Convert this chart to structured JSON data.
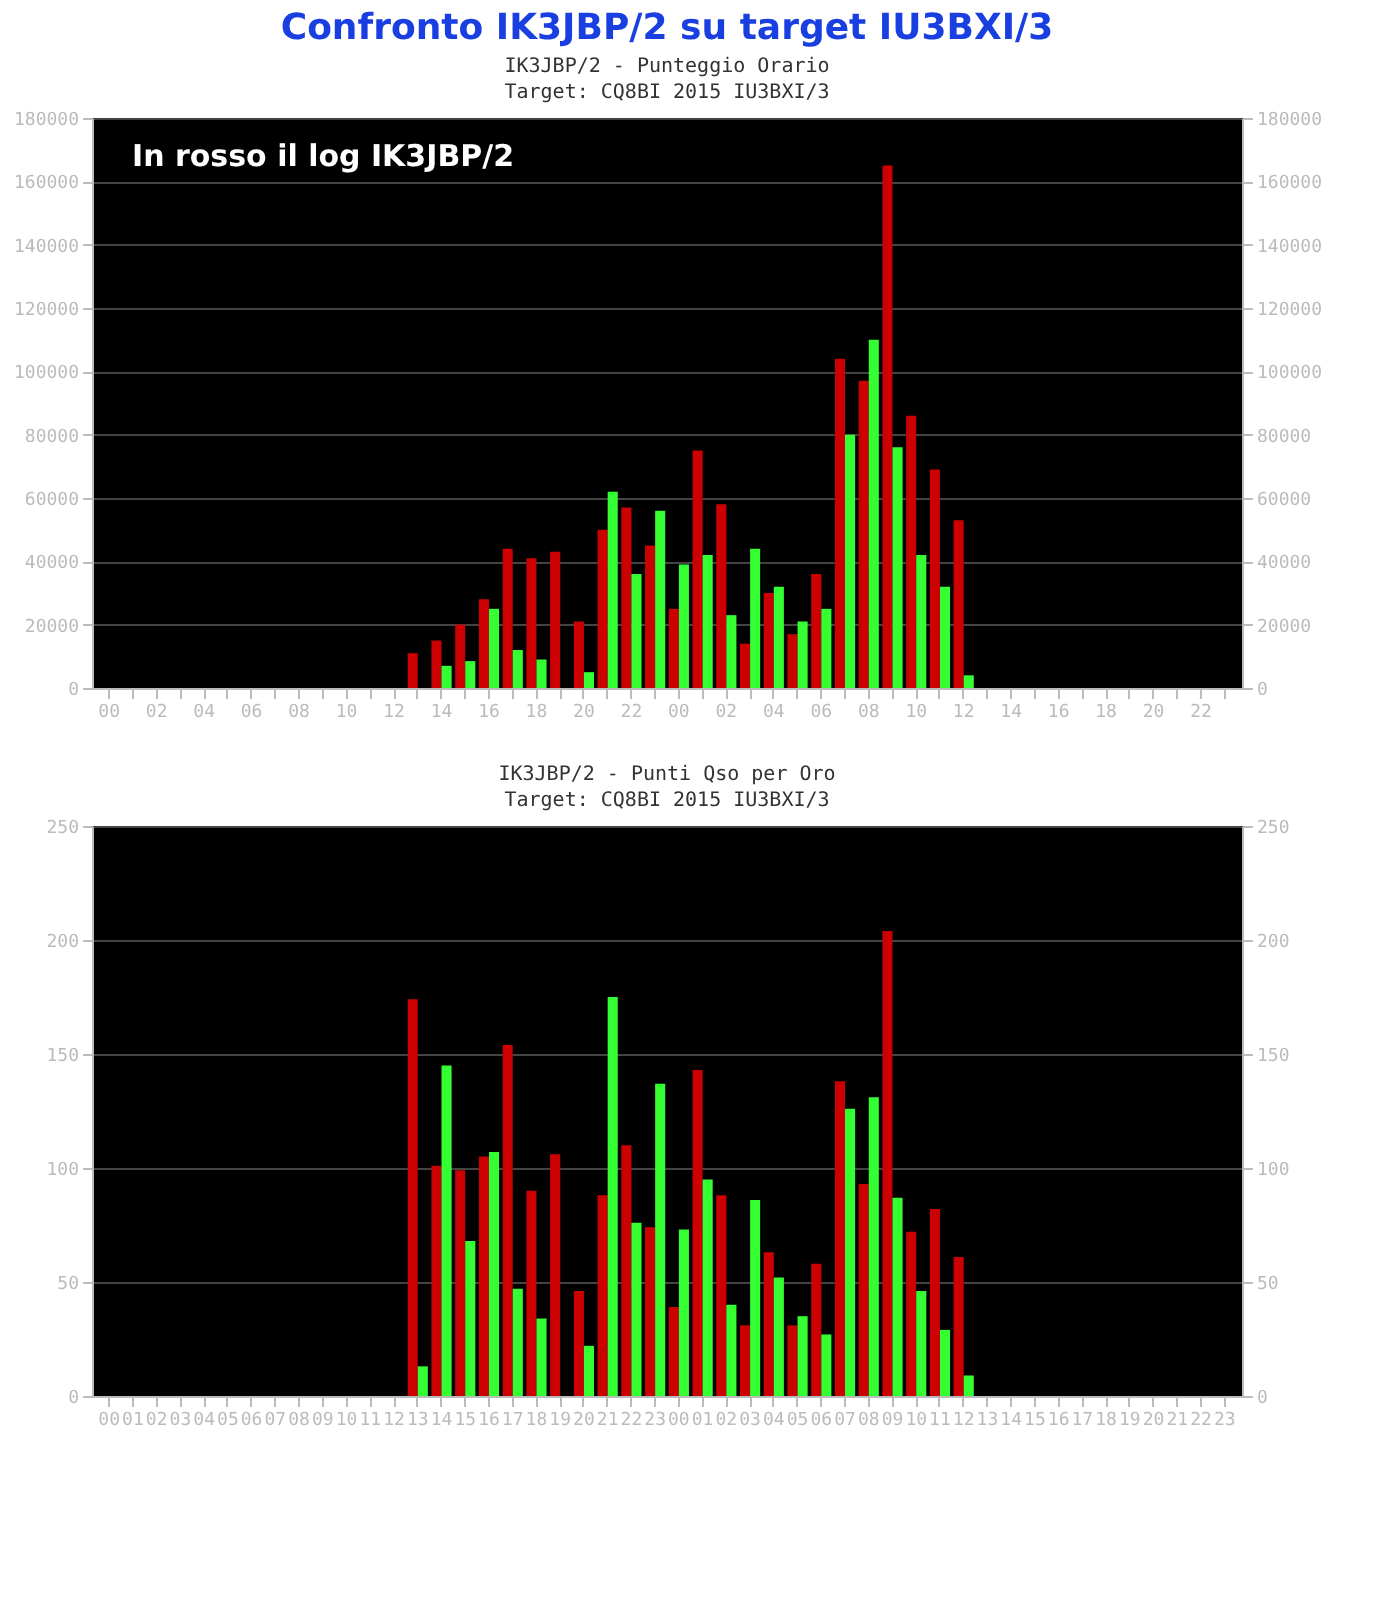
{
  "chart_data": [
    {
      "type": "bar",
      "title": "IK3JBP/2 - Punteggio Orario",
      "subtitle": "Target: CQ8BI 2015 IU3BXI/3",
      "annotations": [
        "Confronto IK3JBP/2  su target  IU3BXI/3",
        "In rosso il log IK3JBP/2"
      ],
      "categories": [
        "00",
        null,
        "02",
        null,
        "04",
        null,
        "06",
        null,
        "08",
        null,
        "10",
        null,
        "12",
        null,
        "14",
        null,
        "16",
        null,
        "18",
        null,
        "20",
        null,
        "22",
        null,
        "00",
        null,
        "02",
        null,
        "04",
        null,
        "06",
        null,
        "08",
        null,
        "10",
        null,
        "12",
        null,
        "14",
        null,
        "16",
        null,
        "18",
        null,
        "20",
        null,
        "22",
        null
      ],
      "series": [
        {
          "color": "#cc0000",
          "values": [
            null,
            null,
            null,
            null,
            null,
            null,
            null,
            null,
            null,
            null,
            null,
            null,
            null,
            11000,
            15000,
            20000,
            28000,
            44000,
            41000,
            43000,
            21000,
            50000,
            57000,
            45000,
            25000,
            75000,
            58000,
            14000,
            30000,
            17000,
            36000,
            104000,
            97000,
            165000,
            86000,
            69000,
            53000,
            null,
            null,
            null,
            null,
            null,
            null,
            null,
            null,
            null,
            null,
            null
          ]
        },
        {
          "color": "#33ff33",
          "values": [
            null,
            null,
            null,
            null,
            null,
            null,
            null,
            null,
            null,
            null,
            null,
            null,
            null,
            null,
            7000,
            8500,
            25000,
            12000,
            9000,
            null,
            5000,
            62000,
            36000,
            56000,
            39000,
            42000,
            23000,
            44000,
            32000,
            21000,
            25000,
            80000,
            110000,
            76000,
            42000,
            32000,
            4000,
            null,
            null,
            null,
            null,
            null,
            null,
            null,
            null,
            null,
            null,
            null
          ]
        }
      ],
      "ylim": [
        0,
        180000
      ],
      "yticks": [
        0,
        20000,
        40000,
        60000,
        80000,
        100000,
        120000,
        140000,
        160000,
        180000
      ],
      "y2lim": [
        0,
        180000
      ],
      "y2ticks": [
        0,
        20000,
        40000,
        60000,
        80000,
        100000,
        120000,
        140000,
        160000,
        180000
      ],
      "grid": "y"
    },
    {
      "type": "bar",
      "title": "IK3JBP/2 - Punti Qso per Oro",
      "subtitle": "Target: CQ8BI 2015 IU3BXI/3",
      "categories": [
        "00",
        "01",
        "02",
        "03",
        "04",
        "05",
        "06",
        "07",
        "08",
        "09",
        "10",
        "11",
        "12",
        "13",
        "14",
        "15",
        "16",
        "17",
        "18",
        "19",
        "20",
        "21",
        "22",
        "23",
        "00",
        "01",
        "02",
        "03",
        "04",
        "05",
        "06",
        "07",
        "08",
        "09",
        "10",
        "11",
        "12",
        "13",
        "14",
        "15",
        "16",
        "17",
        "18",
        "19",
        "20",
        "21",
        "22",
        "23"
      ],
      "series": [
        {
          "color": "#cc0000",
          "values": [
            null,
            null,
            null,
            null,
            null,
            null,
            null,
            null,
            null,
            null,
            null,
            null,
            null,
            174,
            101,
            99,
            105,
            154,
            90,
            106,
            46,
            88,
            110,
            74,
            39,
            143,
            88,
            31,
            63,
            31,
            58,
            138,
            93,
            204,
            72,
            82,
            61,
            null,
            null,
            null,
            null,
            null,
            null,
            null,
            null,
            null,
            null,
            null
          ]
        },
        {
          "color": "#33ff33",
          "values": [
            null,
            null,
            null,
            null,
            null,
            null,
            null,
            null,
            null,
            null,
            null,
            null,
            null,
            13,
            145,
            68,
            107,
            47,
            34,
            null,
            22,
            175,
            76,
            137,
            73,
            95,
            40,
            86,
            52,
            35,
            27,
            126,
            131,
            87,
            46,
            29,
            9,
            null,
            null,
            null,
            null,
            null,
            null,
            null,
            null,
            null,
            null,
            null
          ]
        }
      ],
      "ylim": [
        0,
        250
      ],
      "yticks": [
        0,
        50,
        100,
        150,
        200,
        250
      ],
      "y2lim": [
        0,
        250
      ],
      "y2ticks": [
        0,
        50,
        100,
        150,
        200,
        250
      ],
      "grid": "y"
    }
  ]
}
